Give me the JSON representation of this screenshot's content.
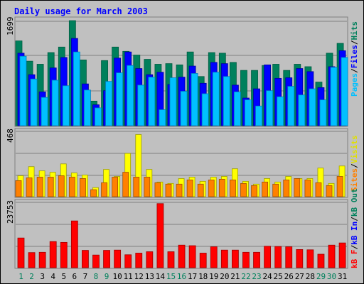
{
  "title": "Daily usage for March 2003",
  "colors": {
    "background": "#c0c0c0",
    "title": "#0000ff",
    "hits": "#00805c",
    "files": "#0000ff",
    "pages": "#00c0ff",
    "visits": "#ffff00",
    "sites": "#ff8000",
    "kb_in": "#0000ff",
    "kb_out": "#00805c",
    "kb_f": "#ff0000",
    "weekday_label": "#000000",
    "weekend_label": "#00805c"
  },
  "legend": {
    "panel1": {
      "pages": "Pages",
      "files": "Files",
      "hits": "Hits",
      "sep": "/"
    },
    "panel2": {
      "sites": "Sites",
      "visits": "Visits",
      "sep": "/"
    },
    "panel3": {
      "kbf": "kB F",
      "kbin": "kB In",
      "kbout": "kB Out",
      "sep": "/"
    }
  },
  "chart_data": {
    "type": "bar",
    "x": [
      1,
      2,
      3,
      4,
      5,
      6,
      7,
      8,
      9,
      10,
      11,
      12,
      13,
      14,
      15,
      16,
      17,
      18,
      19,
      20,
      21,
      22,
      23,
      24,
      25,
      26,
      27,
      28,
      29,
      30,
      31
    ],
    "weekend_days": [
      1,
      2,
      8,
      9,
      15,
      16,
      22,
      23,
      29,
      30
    ],
    "panels": [
      {
        "name": "hits-files-pages",
        "ymax_label": "1699",
        "ylim": [
          0,
          1699
        ],
        "series": [
          {
            "name": "Hits",
            "values": [
              1380,
              1050,
              1000,
              1190,
              1280,
              1710,
              1070,
              400,
              1060,
              1280,
              1210,
              1150,
              1080,
              1000,
              1010,
              990,
              1200,
              800,
              1190,
              1180,
              1030,
              900,
              900,
              980,
              1000,
              900,
              1000,
              960,
              710,
              1180,
              1340
            ]
          },
          {
            "name": "Files",
            "values": [
              1180,
              830,
              550,
              940,
              1110,
              1420,
              680,
              340,
              570,
              1100,
              1200,
              930,
              830,
              870,
              670,
              790,
              970,
              690,
              1030,
              1010,
              660,
              450,
              600,
              990,
              770,
              780,
              930,
              880,
              620,
              960,
              1220
            ]
          },
          {
            "name": "Pages",
            "values": [
              1130,
              760,
              460,
              740,
              650,
              1200,
              580,
              290,
              720,
              860,
              980,
              660,
              790,
              260,
              780,
              560,
              850,
              520,
              870,
              800,
              550,
              420,
              320,
              570,
              470,
              640,
              500,
              600,
              420,
              950,
              1110
            ]
          }
        ]
      },
      {
        "name": "visits-sites",
        "ymax_label": "468",
        "ylim": [
          0,
          468
        ],
        "series": [
          {
            "name": "Visits",
            "values": [
              150,
              215,
              185,
              175,
              235,
              170,
              155,
              65,
              195,
              145,
              310,
              445,
              195,
              105,
              95,
              130,
              140,
              110,
              140,
              145,
              200,
              110,
              90,
              130,
              105,
              145,
              130,
              130,
              205,
              95,
              220
            ]
          },
          {
            "name": "Sites",
            "values": [
              115,
              135,
              140,
              140,
              150,
              140,
              130,
              50,
              100,
              140,
              175,
              140,
              140,
              100,
              90,
              90,
              120,
              90,
              120,
              125,
              120,
              95,
              80,
              105,
              90,
              120,
              130,
              120,
              100,
              80,
              145
            ]
          }
        ]
      },
      {
        "name": "kbf-kbin-kbout",
        "ymax_label": "23753",
        "ylim": [
          0,
          23753
        ],
        "series": [
          {
            "name": "kB F",
            "values": [
              10800,
              5500,
              5600,
              9500,
              9200,
              17000,
              6300,
              4600,
              6300,
              6400,
              4700,
              5300,
              5800,
              23300,
              5800,
              8200,
              8000,
              5300,
              7600,
              6400,
              6400,
              5600,
              5600,
              7800,
              7700,
              7600,
              6600,
              6500,
              4900,
              8200,
              9000
            ]
          }
        ]
      }
    ]
  }
}
